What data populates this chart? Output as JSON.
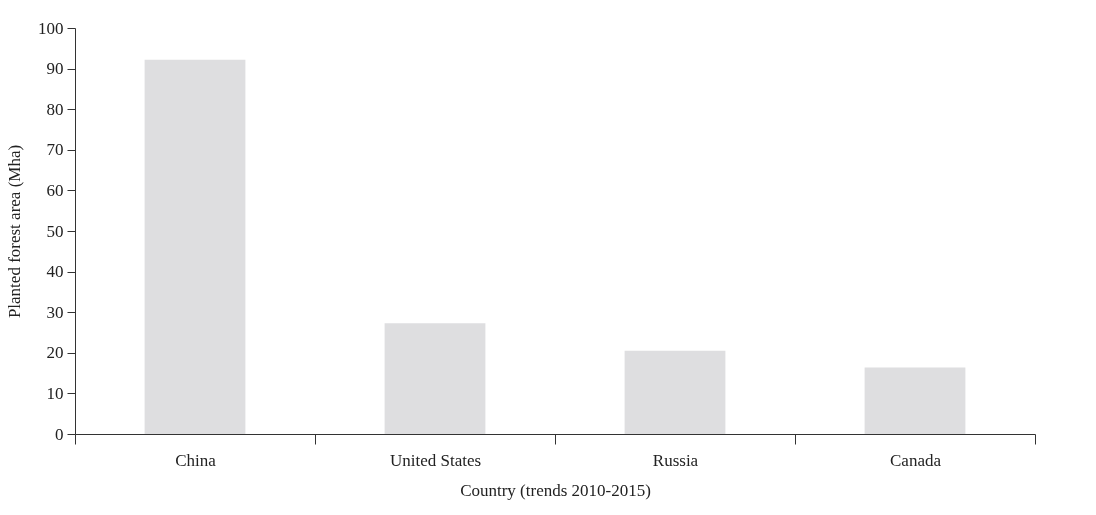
{
  "chart_data": {
    "type": "bar",
    "xlabel": "Country (trends 2010-2015)",
    "ylabel": "Planted forest area (Mha)",
    "categories": [
      "China",
      "United States",
      "Russia",
      "Canada"
    ],
    "values": [
      92.2,
      27.3,
      20.5,
      16.4
    ],
    "color": "#dedee0",
    "ylim": [
      0,
      100
    ],
    "yticks": [
      0,
      10,
      20,
      30,
      40,
      50,
      60,
      70,
      80,
      90,
      100
    ],
    "grid": false
  }
}
